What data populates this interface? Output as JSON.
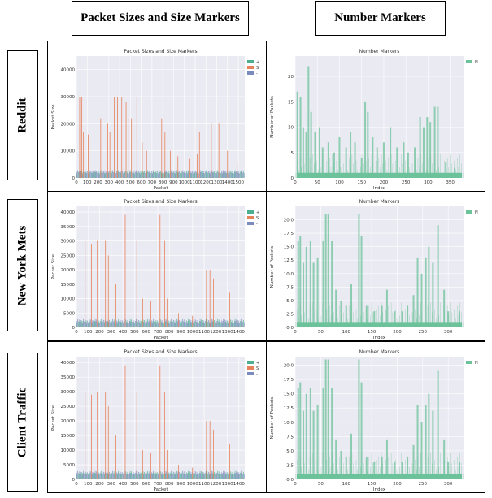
{
  "columns": {
    "left": "Packet Sizes and Size Markers",
    "right": "Number Markers"
  },
  "rows": [
    "Reddit",
    "New York Mets",
    "Client Traffic"
  ],
  "colors": {
    "plus": "#4daf8f",
    "s": "#e8825a",
    "minus": "#7c8bbd",
    "n": "#6cc29a",
    "bg": "#eaeaf2"
  },
  "chart_data": [
    {
      "id": "reddit-sizes",
      "type": "bar",
      "title": "Packet Sizes and Size Markers",
      "xlabel": "Packet",
      "ylabel": "Packet Size",
      "xlim": [
        0,
        1560
      ],
      "ylim": [
        0,
        45000
      ],
      "xticks": [
        0,
        100,
        200,
        300,
        400,
        500,
        600,
        700,
        800,
        900,
        1000,
        1100,
        1200,
        1300,
        1400,
        1500
      ],
      "yticks": [
        0,
        10000,
        20000,
        30000,
        40000
      ],
      "legend": [
        "+",
        "S",
        "-"
      ],
      "spikes": [
        [
          30,
          30000
        ],
        [
          50,
          30000
        ],
        [
          65,
          17000
        ],
        [
          110,
          16000
        ],
        [
          225,
          22000
        ],
        [
          290,
          20000
        ],
        [
          310,
          17000
        ],
        [
          350,
          30000
        ],
        [
          380,
          30000
        ],
        [
          420,
          30000
        ],
        [
          460,
          28000
        ],
        [
          480,
          22000
        ],
        [
          510,
          22000
        ],
        [
          560,
          30000
        ],
        [
          610,
          13000
        ],
        [
          650,
          10000
        ],
        [
          790,
          22000
        ],
        [
          820,
          17000
        ],
        [
          870,
          10000
        ],
        [
          940,
          8000
        ],
        [
          1050,
          7000
        ],
        [
          1120,
          9000
        ],
        [
          1140,
          17000
        ],
        [
          1210,
          13000
        ],
        [
          1250,
          20000
        ],
        [
          1320,
          20000
        ],
        [
          1400,
          10000
        ],
        [
          1490,
          6000
        ]
      ],
      "baseline": 3000,
      "sign_level": 1200
    },
    {
      "id": "reddit-number",
      "type": "bar",
      "title": "Number Markers",
      "xlabel": "Index",
      "ylabel": "Number of Packets",
      "xlim": [
        0,
        380
      ],
      "ylim": [
        0,
        24
      ],
      "xticks": [
        0,
        50,
        100,
        150,
        200,
        250,
        300,
        350
      ],
      "yticks": [
        0,
        5,
        10,
        15,
        20
      ],
      "legend": [
        "N"
      ],
      "spikes": [
        [
          5,
          17
        ],
        [
          12,
          16
        ],
        [
          18,
          10
        ],
        [
          25,
          9
        ],
        [
          30,
          22
        ],
        [
          36,
          13
        ],
        [
          45,
          9
        ],
        [
          55,
          10
        ],
        [
          62,
          6
        ],
        [
          75,
          7
        ],
        [
          88,
          5
        ],
        [
          100,
          8
        ],
        [
          115,
          6
        ],
        [
          125,
          9
        ],
        [
          135,
          7
        ],
        [
          150,
          4
        ],
        [
          158,
          15
        ],
        [
          164,
          13
        ],
        [
          175,
          8
        ],
        [
          185,
          6
        ],
        [
          200,
          7
        ],
        [
          215,
          10
        ],
        [
          230,
          6
        ],
        [
          245,
          7
        ],
        [
          255,
          5
        ],
        [
          270,
          6
        ],
        [
          282,
          12
        ],
        [
          290,
          10
        ],
        [
          298,
          12
        ],
        [
          305,
          11
        ],
        [
          315,
          14
        ],
        [
          322,
          14
        ],
        [
          340,
          3
        ],
        [
          360,
          2
        ]
      ],
      "baseline": 1
    },
    {
      "id": "nym-sizes",
      "type": "bar",
      "title": "Packet Sizes and Size Markers",
      "xlabel": "Packet",
      "ylabel": "Packet Size",
      "xlim": [
        0,
        1450
      ],
      "ylim": [
        0,
        42000
      ],
      "xticks": [
        0,
        100,
        200,
        300,
        400,
        500,
        600,
        700,
        800,
        900,
        1000,
        1100,
        1200,
        1300,
        1400
      ],
      "yticks": [
        0,
        5000,
        10000,
        15000,
        20000,
        25000,
        30000,
        35000,
        40000
      ],
      "legend": [
        "+",
        "S",
        "-"
      ],
      "spikes": [
        [
          75,
          30000
        ],
        [
          130,
          29000
        ],
        [
          180,
          30000
        ],
        [
          250,
          30000
        ],
        [
          275,
          25000
        ],
        [
          340,
          15000
        ],
        [
          420,
          39000
        ],
        [
          520,
          30000
        ],
        [
          570,
          10000
        ],
        [
          640,
          9000
        ],
        [
          720,
          39000
        ],
        [
          760,
          30000
        ],
        [
          780,
          10000
        ],
        [
          880,
          5000
        ],
        [
          1000,
          4000
        ],
        [
          1120,
          20000
        ],
        [
          1150,
          20000
        ],
        [
          1180,
          17000
        ],
        [
          1320,
          12000
        ]
      ],
      "baseline": 3000,
      "sign_level": 1200
    },
    {
      "id": "nym-number",
      "type": "bar",
      "title": "Number Markers",
      "xlabel": "Index",
      "ylabel": "Number of Packets",
      "xlim": [
        0,
        330
      ],
      "ylim": [
        0,
        22.5
      ],
      "xticks": [
        0,
        50,
        100,
        150,
        200,
        250,
        300
      ],
      "yticks": [
        0.0,
        2.5,
        5.0,
        7.5,
        10.0,
        12.5,
        15.0,
        17.5,
        20.0
      ],
      "legend": [
        "N"
      ],
      "spikes": [
        [
          6,
          16
        ],
        [
          10,
          17
        ],
        [
          16,
          12
        ],
        [
          22,
          15
        ],
        [
          30,
          16
        ],
        [
          36,
          12
        ],
        [
          44,
          13
        ],
        [
          55,
          16
        ],
        [
          60,
          21
        ],
        [
          65,
          21
        ],
        [
          72,
          16
        ],
        [
          80,
          7
        ],
        [
          90,
          5
        ],
        [
          100,
          4
        ],
        [
          110,
          8
        ],
        [
          125,
          21
        ],
        [
          130,
          17
        ],
        [
          140,
          4
        ],
        [
          155,
          3
        ],
        [
          170,
          4
        ],
        [
          180,
          7
        ],
        [
          195,
          3
        ],
        [
          210,
          3
        ],
        [
          220,
          4
        ],
        [
          232,
          6
        ],
        [
          240,
          13
        ],
        [
          248,
          10
        ],
        [
          256,
          13
        ],
        [
          262,
          15
        ],
        [
          270,
          12
        ],
        [
          280,
          19
        ],
        [
          292,
          7
        ],
        [
          300,
          3
        ],
        [
          322,
          3
        ]
      ],
      "baseline": 1
    },
    {
      "id": "client-sizes",
      "type": "bar",
      "title": "Packet Sizes and Size Markers",
      "xlabel": "Packet",
      "ylabel": "Packet Size",
      "xlim": [
        0,
        1450
      ],
      "ylim": [
        0,
        42000
      ],
      "xticks": [
        0,
        100,
        200,
        300,
        400,
        500,
        600,
        700,
        800,
        900,
        1000,
        1100,
        1200,
        1300,
        1400
      ],
      "yticks": [
        0,
        5000,
        10000,
        15000,
        20000,
        25000,
        30000,
        35000,
        40000
      ],
      "legend": [
        "+",
        "S",
        "-"
      ],
      "spikes": [
        [
          75,
          30000
        ],
        [
          130,
          29000
        ],
        [
          180,
          30000
        ],
        [
          250,
          30000
        ],
        [
          275,
          25000
        ],
        [
          340,
          15000
        ],
        [
          420,
          39000
        ],
        [
          520,
          30000
        ],
        [
          570,
          10000
        ],
        [
          640,
          9000
        ],
        [
          720,
          39000
        ],
        [
          760,
          30000
        ],
        [
          780,
          10000
        ],
        [
          880,
          5000
        ],
        [
          1000,
          4000
        ],
        [
          1120,
          20000
        ],
        [
          1150,
          20000
        ],
        [
          1180,
          17000
        ],
        [
          1320,
          12000
        ]
      ],
      "baseline": 3000,
      "sign_level": 1200
    },
    {
      "id": "client-number",
      "type": "bar",
      "title": "Number Markers",
      "xlabel": "Index",
      "ylabel": "Number of Packets",
      "xlim": [
        0,
        330
      ],
      "ylim": [
        0,
        21.5
      ],
      "xticks": [
        0,
        50,
        100,
        150,
        200,
        250,
        300
      ],
      "yticks": [
        0.0,
        2.5,
        5.0,
        7.5,
        10.0,
        12.5,
        15.0,
        17.5,
        20.0
      ],
      "legend": [
        "N"
      ],
      "spikes": [
        [
          6,
          16
        ],
        [
          10,
          17
        ],
        [
          16,
          12
        ],
        [
          22,
          15
        ],
        [
          30,
          16
        ],
        [
          36,
          12
        ],
        [
          44,
          13
        ],
        [
          55,
          16
        ],
        [
          60,
          21
        ],
        [
          65,
          21
        ],
        [
          72,
          16
        ],
        [
          80,
          7
        ],
        [
          90,
          5
        ],
        [
          100,
          4
        ],
        [
          110,
          8
        ],
        [
          125,
          21
        ],
        [
          130,
          17
        ],
        [
          140,
          4
        ],
        [
          155,
          3
        ],
        [
          170,
          4
        ],
        [
          180,
          7
        ],
        [
          195,
          3
        ],
        [
          210,
          3
        ],
        [
          220,
          4
        ],
        [
          232,
          6
        ],
        [
          240,
          13
        ],
        [
          248,
          10
        ],
        [
          256,
          13
        ],
        [
          262,
          15
        ],
        [
          270,
          12
        ],
        [
          280,
          19
        ],
        [
          292,
          7
        ],
        [
          300,
          3
        ],
        [
          322,
          3
        ]
      ],
      "baseline": 1
    }
  ]
}
